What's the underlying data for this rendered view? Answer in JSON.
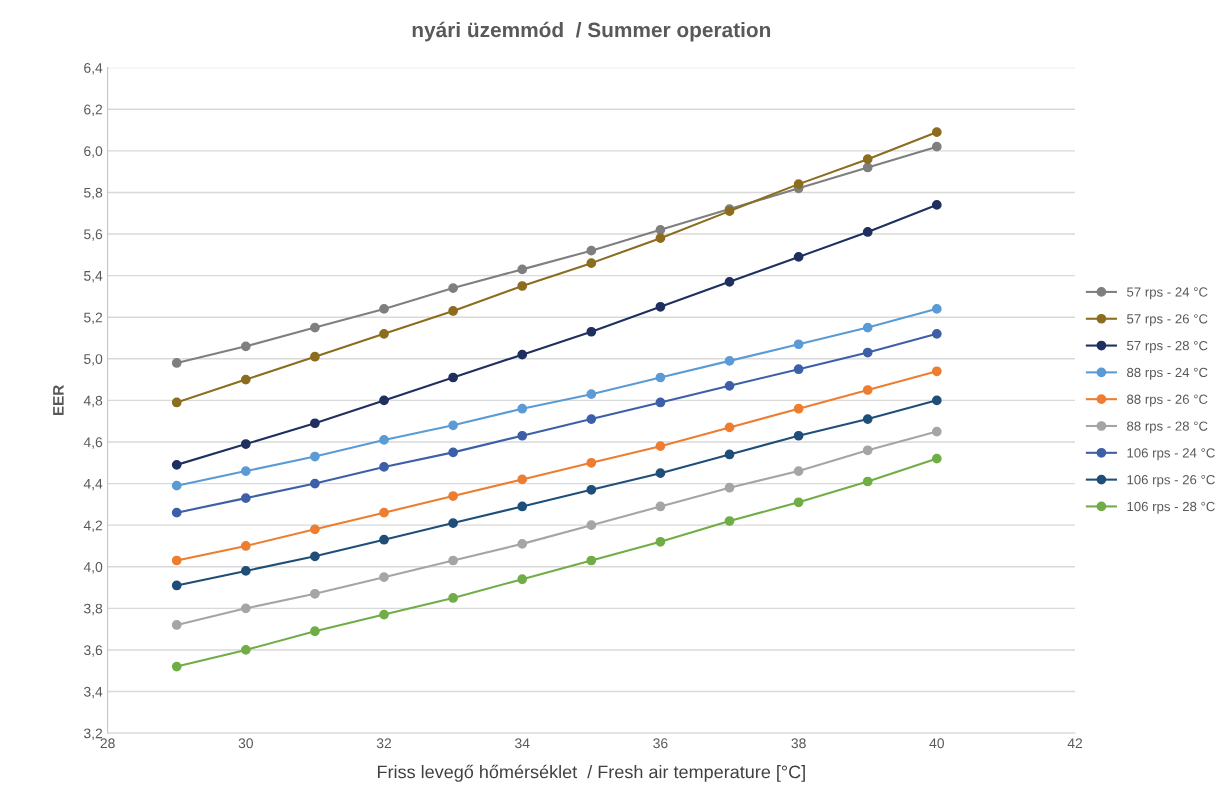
{
  "chart_data": {
    "type": "line",
    "title": "nyári üzemmód  / Summer operation",
    "xlabel": "Friss levegő hőmérséklet  / Fresh air temperature [°C]",
    "ylabel": "EER",
    "x": [
      29,
      30,
      31,
      32,
      33,
      34,
      35,
      36,
      37,
      38,
      39,
      40
    ],
    "series": [
      {
        "name": "57 rps - 24 °C",
        "color": "#7f7f7f",
        "values": [
          4.98,
          5.06,
          5.15,
          5.24,
          5.34,
          5.43,
          5.52,
          5.62,
          5.72,
          5.82,
          5.92,
          6.02
        ]
      },
      {
        "name": "57 rps - 26 °C",
        "color": "#8c6d1f",
        "values": [
          4.79,
          4.9,
          5.01,
          5.12,
          5.23,
          5.35,
          5.46,
          5.58,
          5.71,
          5.84,
          5.96,
          6.09
        ]
      },
      {
        "name": "57 rps - 28 °C",
        "color": "#1f2f5f",
        "values": [
          4.49,
          4.59,
          4.69,
          4.8,
          4.91,
          5.02,
          5.13,
          5.25,
          5.37,
          5.49,
          5.61,
          5.74
        ]
      },
      {
        "name": "88 rps - 24 °C",
        "color": "#5b9bd5",
        "values": [
          4.39,
          4.46,
          4.53,
          4.61,
          4.68,
          4.76,
          4.83,
          4.91,
          4.99,
          5.07,
          5.15,
          5.24
        ]
      },
      {
        "name": "88 rps - 26 °C",
        "color": "#ed7d31",
        "values": [
          4.03,
          4.1,
          4.18,
          4.26,
          4.34,
          4.42,
          4.5,
          4.58,
          4.67,
          4.76,
          4.85,
          4.94
        ]
      },
      {
        "name": "88 rps - 28 °C",
        "color": "#a5a5a5",
        "values": [
          3.72,
          3.8,
          3.87,
          3.95,
          4.03,
          4.11,
          4.2,
          4.29,
          4.38,
          4.46,
          4.56,
          4.65
        ]
      },
      {
        "name": "106 rps - 24 °C",
        "color": "#3d5fa8",
        "values": [
          4.26,
          4.33,
          4.4,
          4.48,
          4.55,
          4.63,
          4.71,
          4.79,
          4.87,
          4.95,
          5.03,
          5.12
        ]
      },
      {
        "name": "106 rps - 26 °C",
        "color": "#1f4e79",
        "values": [
          3.91,
          3.98,
          4.05,
          4.13,
          4.21,
          4.29,
          4.37,
          4.45,
          4.54,
          4.63,
          4.71,
          4.8
        ]
      },
      {
        "name": "106 rps - 28 °C",
        "color": "#70ad47",
        "values": [
          3.52,
          3.6,
          3.69,
          3.77,
          3.85,
          3.94,
          4.03,
          4.12,
          4.22,
          4.31,
          4.41,
          4.52
        ]
      }
    ],
    "xlim": [
      28,
      42
    ],
    "xticks": [
      28,
      30,
      32,
      34,
      36,
      38,
      40,
      42
    ],
    "ylim": [
      3.2,
      6.4
    ],
    "yticks": [
      {
        "value": 3.2,
        "label": "3,2"
      },
      {
        "value": 3.4,
        "label": "3,4"
      },
      {
        "value": 3.6,
        "label": "3,6"
      },
      {
        "value": 3.8,
        "label": "3,8"
      },
      {
        "value": 4.0,
        "label": "4,0"
      },
      {
        "value": 4.2,
        "label": "4,2"
      },
      {
        "value": 4.4,
        "label": "4,4"
      },
      {
        "value": 4.6,
        "label": "4,6"
      },
      {
        "value": 4.8,
        "label": "4,8"
      },
      {
        "value": 5.0,
        "label": "5,0"
      },
      {
        "value": 5.2,
        "label": "5,2"
      },
      {
        "value": 5.4,
        "label": "5,4"
      },
      {
        "value": 5.6,
        "label": "5,6"
      },
      {
        "value": 5.8,
        "label": "5,8"
      },
      {
        "value": 6.0,
        "label": "6,0"
      },
      {
        "value": 6.2,
        "label": "6,2"
      },
      {
        "value": 6.4,
        "label": "6,4"
      }
    ],
    "grid": "y",
    "legend": "right",
    "marker": "circle",
    "line_style": "solid"
  }
}
